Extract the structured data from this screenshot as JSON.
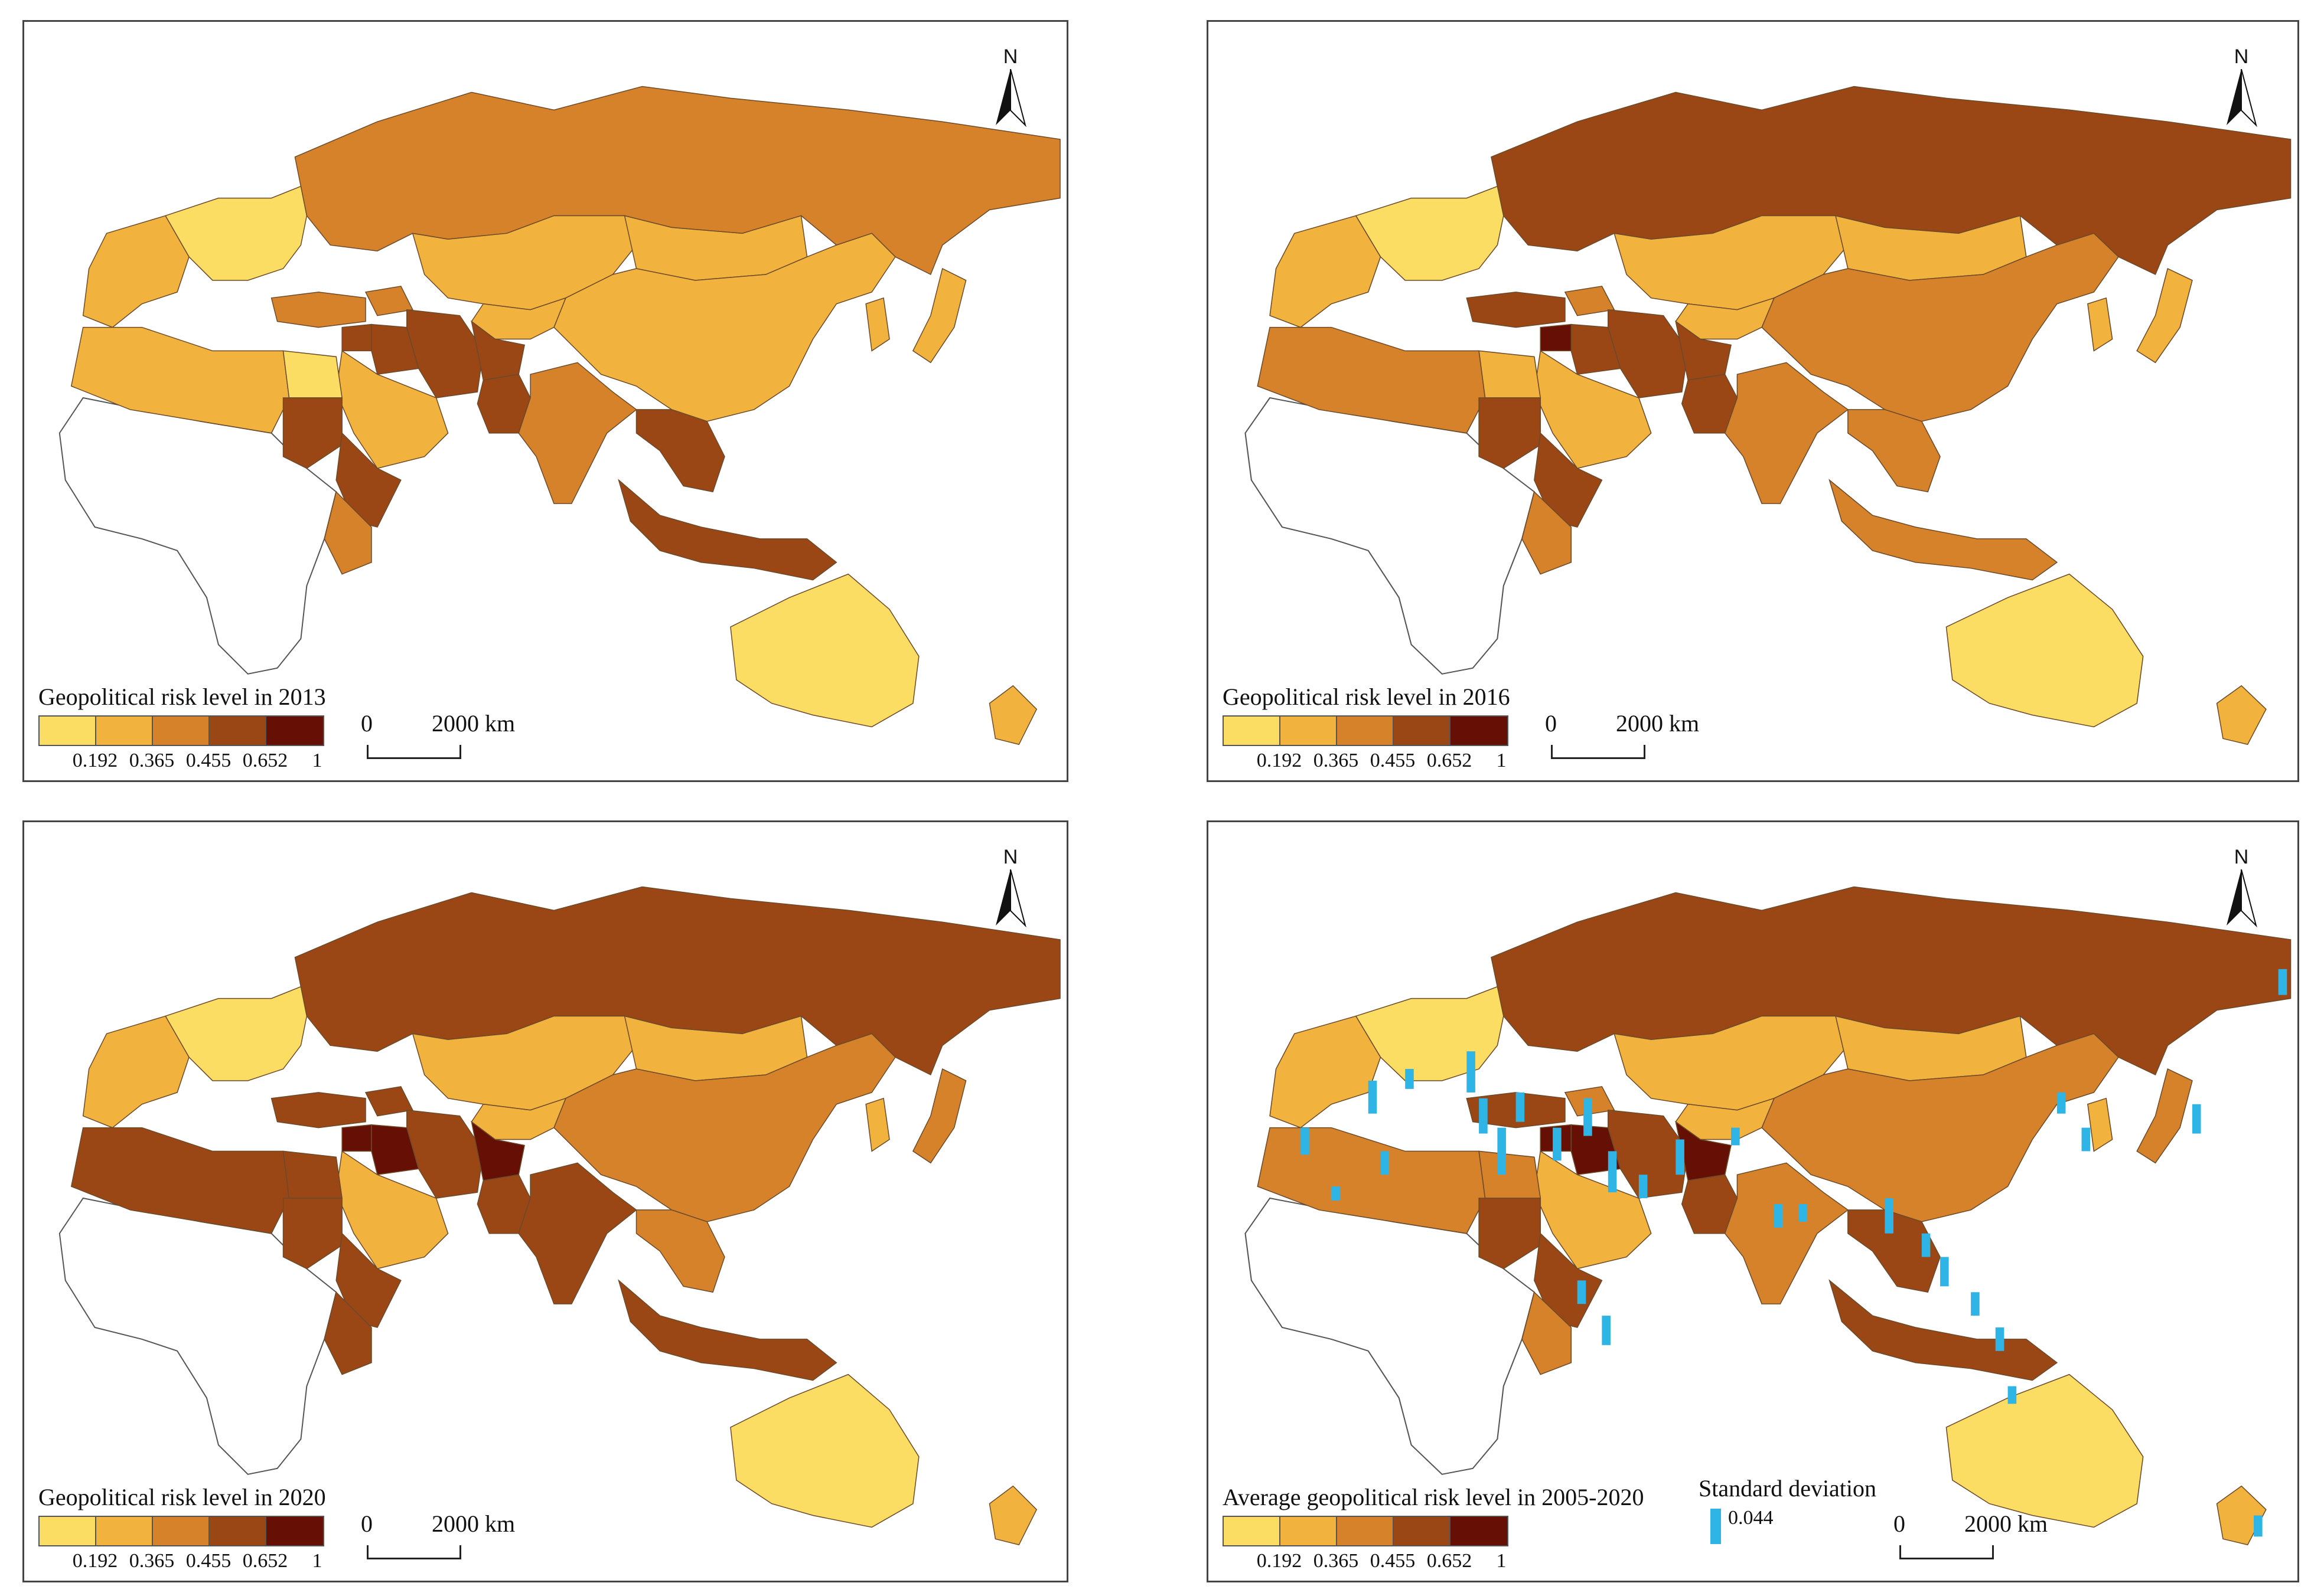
{
  "legend": {
    "breaks": [
      "0.192",
      "0.365",
      "0.455",
      "0.652",
      "1"
    ],
    "colors": [
      "#fbdd63",
      "#f2b23e",
      "#d5822a",
      "#9a4715",
      "#661005"
    ]
  },
  "scale": {
    "zero": "0",
    "distance": "2000 km"
  },
  "north_label": "N",
  "panels": [
    {
      "title": "Geopolitical risk level in 2013",
      "risk_class": {
        "russia": 2,
        "kazakhstan": 1,
        "mongolia": 1,
        "china": 1,
        "central_asia": 1,
        "europe": 0,
        "west_europe": 1,
        "turkey": 2,
        "iran": 3,
        "afghanistan": 3,
        "pakistan": 3,
        "india": 2,
        "southeast_asia": 3,
        "indonesia": 3,
        "australia": 0,
        "new_zealand": 1,
        "arabia": 1,
        "north_africa": 1,
        "egypt": 0,
        "sudan": 3,
        "east_africa": 3,
        "kenya": 2,
        "caucasus": 2,
        "iraq": 3,
        "syria": 3,
        "japan": 1,
        "korea": 1
      }
    },
    {
      "title": "Geopolitical risk level in 2016",
      "risk_class": {
        "russia": 3,
        "kazakhstan": 1,
        "mongolia": 1,
        "china": 2,
        "central_asia": 1,
        "europe": 0,
        "west_europe": 1,
        "turkey": 3,
        "iran": 3,
        "afghanistan": 3,
        "pakistan": 3,
        "india": 2,
        "southeast_asia": 2,
        "indonesia": 2,
        "australia": 0,
        "new_zealand": 1,
        "arabia": 1,
        "north_africa": 2,
        "egypt": 1,
        "sudan": 3,
        "east_africa": 3,
        "kenya": 2,
        "caucasus": 2,
        "iraq": 3,
        "syria": 4,
        "japan": 1,
        "korea": 1
      }
    },
    {
      "title": "Geopolitical risk level in 2020",
      "risk_class": {
        "russia": 3,
        "kazakhstan": 1,
        "mongolia": 1,
        "china": 2,
        "central_asia": 1,
        "europe": 0,
        "west_europe": 1,
        "turkey": 3,
        "iran": 3,
        "afghanistan": 4,
        "pakistan": 3,
        "india": 3,
        "southeast_asia": 2,
        "indonesia": 3,
        "australia": 0,
        "new_zealand": 1,
        "arabia": 1,
        "north_africa": 3,
        "egypt": 3,
        "sudan": 3,
        "east_africa": 3,
        "kenya": 3,
        "caucasus": 3,
        "iraq": 4,
        "syria": 4,
        "japan": 2,
        "korea": 1
      }
    },
    {
      "title": "Average geopolitical risk level in 2005-2020",
      "sd_title": "Standard deviation",
      "sd_value": "0.044",
      "sd_color": "#2fb4e6",
      "risk_class": {
        "russia": 3,
        "kazakhstan": 1,
        "mongolia": 1,
        "china": 2,
        "central_asia": 1,
        "europe": 0,
        "west_europe": 1,
        "turkey": 3,
        "iran": 3,
        "afghanistan": 4,
        "pakistan": 3,
        "india": 2,
        "southeast_asia": 3,
        "indonesia": 3,
        "australia": 0,
        "new_zealand": 1,
        "arabia": 1,
        "north_africa": 2,
        "egypt": 2,
        "sudan": 3,
        "east_africa": 3,
        "kenya": 2,
        "caucasus": 2,
        "iraq": 4,
        "syria": 4,
        "japan": 2,
        "korea": 1
      }
    }
  ]
}
